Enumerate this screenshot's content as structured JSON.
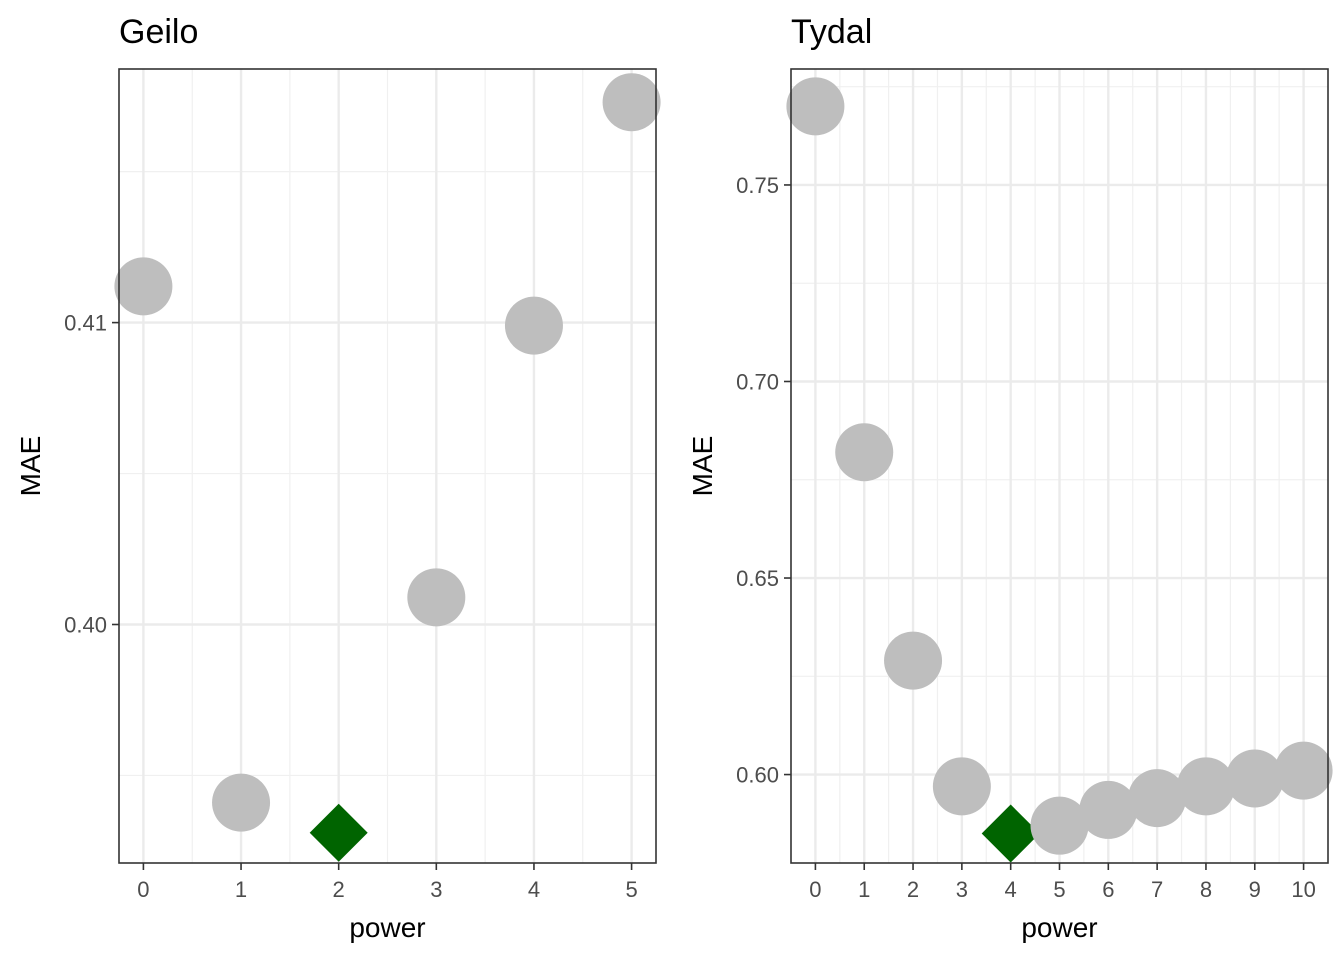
{
  "chart_data": [
    {
      "type": "scatter",
      "title": "Geilo",
      "xlabel": "power",
      "ylabel": "MAE",
      "x": [
        0,
        1,
        2,
        3,
        4,
        5
      ],
      "y": [
        0.4112,
        0.3941,
        0.3931,
        0.4009,
        0.4099,
        0.4173
      ],
      "best_index": 2,
      "xlim": [
        -0.25,
        5.25
      ],
      "ylim": [
        0.3921,
        0.4184
      ],
      "x_ticks": [
        0,
        1,
        2,
        3,
        4,
        5
      ],
      "y_ticks": [
        0.4,
        0.41
      ],
      "y_tick_labels": [
        "0.40",
        "0.41"
      ],
      "grid": true,
      "point_color": "#bebebe",
      "best_color": "#006400"
    },
    {
      "type": "scatter",
      "title": "Tydal",
      "xlabel": "power",
      "ylabel": "MAE",
      "x": [
        0,
        1,
        2,
        3,
        4,
        5,
        6,
        7,
        8,
        9,
        10
      ],
      "y": [
        0.77,
        0.682,
        0.629,
        0.597,
        0.585,
        0.587,
        0.591,
        0.594,
        0.597,
        0.599,
        0.601
      ],
      "best_index": 4,
      "xlim": [
        -0.5,
        10.5
      ],
      "ylim": [
        0.5775,
        0.7795
      ],
      "x_ticks": [
        0,
        1,
        2,
        3,
        4,
        5,
        6,
        7,
        8,
        9,
        10
      ],
      "y_ticks": [
        0.6,
        0.65,
        0.7,
        0.75
      ],
      "y_tick_labels": [
        "0.60",
        "0.65",
        "0.70",
        "0.75"
      ],
      "grid": true,
      "point_color": "#bebebe",
      "best_color": "#006400"
    }
  ]
}
